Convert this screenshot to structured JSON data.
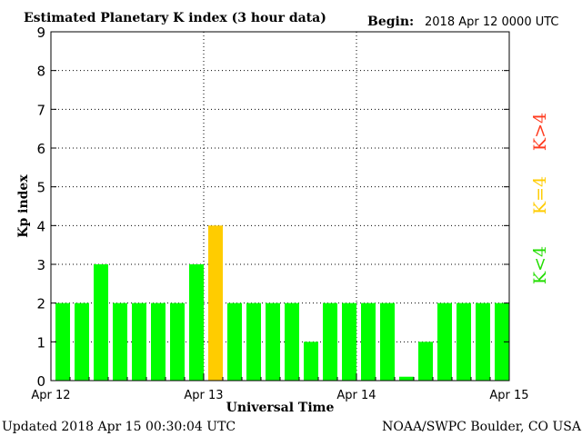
{
  "header": {
    "title": "Estimated Planetary K index (3 hour data)",
    "begin_label": "Begin:",
    "begin_value": "2018 Apr 12  0000 UTC"
  },
  "footer": {
    "updated": "Updated 2018 Apr 15 00:30:04 UTC",
    "source": "NOAA/SWPC Boulder, CO USA"
  },
  "legend": {
    "high": {
      "label": "K>4",
      "color": "#ff3b1f"
    },
    "equal": {
      "label": "K=4",
      "color": "#ffcc00"
    },
    "low": {
      "label": "K<4",
      "color": "#22dd00"
    }
  },
  "colors": {
    "below4": "#00ff00",
    "equal4": "#ffcc00",
    "above4": "#ff0000"
  },
  "chart_data": {
    "type": "bar",
    "title": "Estimated Planetary K index (3 hour data)",
    "xlabel": "Universal Time",
    "ylabel": "Kp index",
    "ylim": [
      0,
      9
    ],
    "yticks": [
      0,
      1,
      2,
      3,
      4,
      5,
      6,
      7,
      8,
      9
    ],
    "xticks": [
      "Apr 12",
      "Apr 13",
      "Apr 14",
      "Apr 15"
    ],
    "grid": "dotted, at Apr 13 and Apr 14 and every integer Kp",
    "interval_hours": 3,
    "values": [
      2,
      2,
      3,
      2,
      2,
      2,
      2,
      3,
      4,
      2,
      2,
      2,
      2,
      1,
      2,
      2,
      2,
      2,
      0.1,
      1,
      2,
      2,
      2,
      2
    ]
  }
}
